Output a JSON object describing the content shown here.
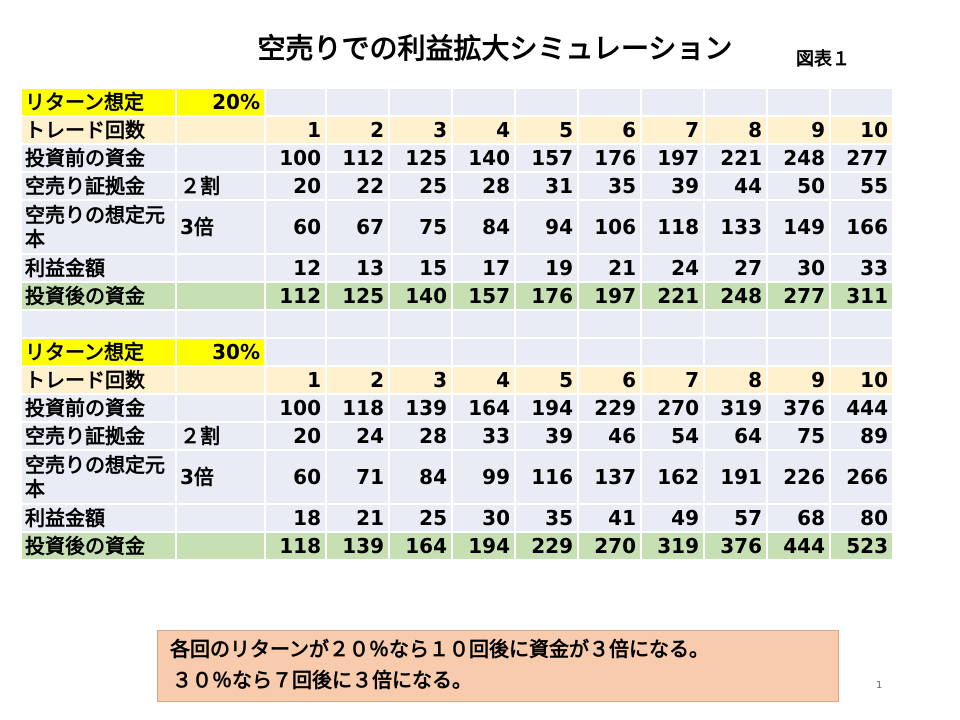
{
  "title": "空売りでの利益拡大シミュレーション",
  "figure_label": "図表１",
  "tables": [
    {
      "return_label": "リターン想定",
      "return_value": "20%",
      "trade_count_label": "トレード回数",
      "trades": [
        "1",
        "2",
        "3",
        "4",
        "5",
        "6",
        "7",
        "8",
        "9",
        "10"
      ],
      "rows": {
        "before": {
          "label": "投資前の資金",
          "param": "",
          "values": [
            "100",
            "112",
            "125",
            "140",
            "157",
            "176",
            "197",
            "221",
            "248",
            "277"
          ]
        },
        "margin": {
          "label": "空売り証拠金",
          "param": "２割",
          "values": [
            "20",
            "22",
            "25",
            "28",
            "31",
            "35",
            "39",
            "44",
            "50",
            "55"
          ]
        },
        "principal": {
          "label": "空売りの想定元本",
          "param": "3倍",
          "values": [
            "60",
            "67",
            "75",
            "84",
            "94",
            "106",
            "118",
            "133",
            "149",
            "166"
          ]
        },
        "profit": {
          "label": "利益金額",
          "param": "",
          "values": [
            "12",
            "13",
            "15",
            "17",
            "19",
            "21",
            "24",
            "27",
            "30",
            "33"
          ]
        },
        "after": {
          "label": "投資後の資金",
          "param": "",
          "values": [
            "112",
            "125",
            "140",
            "157",
            "176",
            "197",
            "221",
            "248",
            "277",
            "311"
          ]
        }
      }
    },
    {
      "return_label": "リターン想定",
      "return_value": "30%",
      "trade_count_label": "トレード回数",
      "trades": [
        "1",
        "2",
        "3",
        "4",
        "5",
        "6",
        "7",
        "8",
        "9",
        "10"
      ],
      "rows": {
        "before": {
          "label": "投資前の資金",
          "param": "",
          "values": [
            "100",
            "118",
            "139",
            "164",
            "194",
            "229",
            "270",
            "319",
            "376",
            "444"
          ]
        },
        "margin": {
          "label": "空売り証拠金",
          "param": "２割",
          "values": [
            "20",
            "24",
            "28",
            "33",
            "39",
            "46",
            "54",
            "64",
            "75",
            "89"
          ]
        },
        "principal": {
          "label": "空売りの想定元本",
          "param": "3倍",
          "values": [
            "60",
            "71",
            "84",
            "99",
            "116",
            "137",
            "162",
            "191",
            "226",
            "266"
          ]
        },
        "profit": {
          "label": "利益金額",
          "param": "",
          "values": [
            "18",
            "21",
            "25",
            "30",
            "35",
            "41",
            "49",
            "57",
            "68",
            "80"
          ]
        },
        "after": {
          "label": "投資後の資金",
          "param": "",
          "values": [
            "118",
            "139",
            "164",
            "194",
            "229",
            "270",
            "319",
            "376",
            "444",
            "523"
          ]
        }
      }
    }
  ],
  "note": {
    "line1": "各回のリターンが２０％なら１０回後に資金が３倍になる。",
    "line2": "３０％なら７回後に３倍になる。"
  },
  "page_number": "1"
}
